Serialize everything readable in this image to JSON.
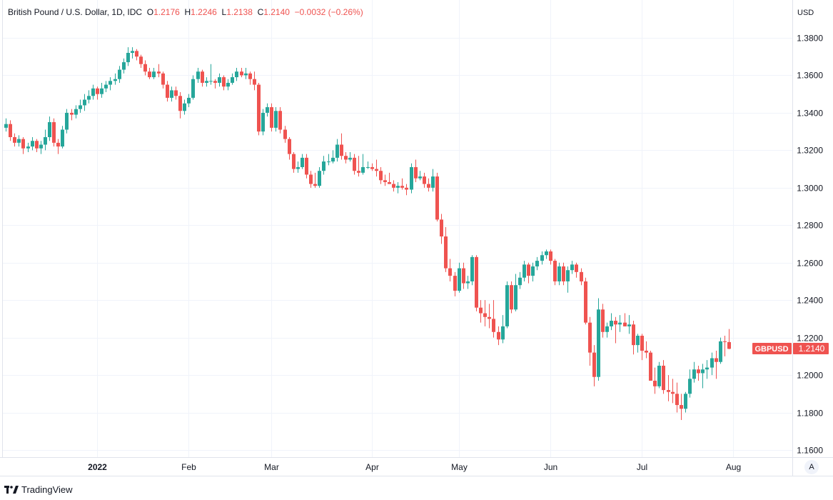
{
  "legend": {
    "title": "British Pound / U.S. Dollar, 1D, IDC",
    "o_label": "O",
    "o": "1.2176",
    "h_label": "H",
    "h": "1.2246",
    "l_label": "L",
    "l": "1.2138",
    "c_label": "C",
    "c": "1.2140",
    "change": "−0.0032 (−0.26%)"
  },
  "footer": {
    "brand": "TradingView"
  },
  "auto_button": "A",
  "colors": {
    "up": "#26a69a",
    "down": "#ef5350",
    "grid": "#f0f3fa",
    "text": "#131722"
  },
  "chart_data": {
    "type": "candlestick",
    "title": "British Pound / U.S. Dollar, 1D, IDC",
    "currency_label": "USD",
    "ylim": [
      1.16,
      1.38
    ],
    "yticks": [
      "1.1600",
      "1.1800",
      "1.2000",
      "1.2200",
      "1.2400",
      "1.2600",
      "1.2800",
      "1.3000",
      "1.3200",
      "1.3400",
      "1.3600",
      "1.3800"
    ],
    "xticks": [
      {
        "label": "2022",
        "index": 21
      },
      {
        "label": "Feb",
        "index": 42
      },
      {
        "label": "Mar",
        "index": 61
      },
      {
        "label": "Apr",
        "index": 84
      },
      {
        "label": "May",
        "index": 104
      },
      {
        "label": "Jun",
        "index": 125
      },
      {
        "label": "Jul",
        "index": 146
      },
      {
        "label": "Aug",
        "index": 167
      }
    ],
    "last_price": {
      "symbol": "GBPUSD",
      "value": "1.2140",
      "price": 1.214
    },
    "candles_ohlc": [
      [
        1.332,
        1.337,
        1.33,
        1.334
      ],
      [
        1.334,
        1.336,
        1.325,
        1.327
      ],
      [
        1.327,
        1.329,
        1.322,
        1.324
      ],
      [
        1.324,
        1.328,
        1.322,
        1.326
      ],
      [
        1.326,
        1.327,
        1.318,
        1.321
      ],
      [
        1.321,
        1.324,
        1.319,
        1.322
      ],
      [
        1.322,
        1.327,
        1.32,
        1.325
      ],
      [
        1.325,
        1.326,
        1.319,
        1.321
      ],
      [
        1.321,
        1.325,
        1.318,
        1.323
      ],
      [
        1.323,
        1.331,
        1.32,
        1.327
      ],
      [
        1.327,
        1.338,
        1.325,
        1.335
      ],
      [
        1.335,
        1.337,
        1.322,
        1.324
      ],
      [
        1.324,
        1.326,
        1.318,
        1.322
      ],
      [
        1.322,
        1.333,
        1.321,
        1.331
      ],
      [
        1.331,
        1.342,
        1.329,
        1.34
      ],
      [
        1.34,
        1.342,
        1.336,
        1.339
      ],
      [
        1.339,
        1.344,
        1.337,
        1.342
      ],
      [
        1.342,
        1.347,
        1.34,
        1.344
      ],
      [
        1.344,
        1.35,
        1.341,
        1.347
      ],
      [
        1.347,
        1.352,
        1.345,
        1.349
      ],
      [
        1.349,
        1.355,
        1.347,
        1.353
      ],
      [
        1.353,
        1.354,
        1.347,
        1.35
      ],
      [
        1.35,
        1.356,
        1.348,
        1.353
      ],
      [
        1.353,
        1.357,
        1.351,
        1.355
      ],
      [
        1.355,
        1.359,
        1.352,
        1.357
      ],
      [
        1.357,
        1.361,
        1.355,
        1.358
      ],
      [
        1.358,
        1.365,
        1.356,
        1.363
      ],
      [
        1.363,
        1.369,
        1.361,
        1.367
      ],
      [
        1.367,
        1.375,
        1.365,
        1.372
      ],
      [
        1.372,
        1.375,
        1.369,
        1.373
      ],
      [
        1.373,
        1.374,
        1.368,
        1.37
      ],
      [
        1.37,
        1.371,
        1.364,
        1.366
      ],
      [
        1.366,
        1.368,
        1.36,
        1.362
      ],
      [
        1.362,
        1.364,
        1.358,
        1.359
      ],
      [
        1.359,
        1.364,
        1.358,
        1.362
      ],
      [
        1.362,
        1.366,
        1.359,
        1.361
      ],
      [
        1.361,
        1.362,
        1.353,
        1.355
      ],
      [
        1.355,
        1.357,
        1.346,
        1.348
      ],
      [
        1.348,
        1.354,
        1.346,
        1.352
      ],
      [
        1.352,
        1.354,
        1.347,
        1.349
      ],
      [
        1.349,
        1.351,
        1.337,
        1.341
      ],
      [
        1.341,
        1.347,
        1.339,
        1.345
      ],
      [
        1.345,
        1.35,
        1.343,
        1.348
      ],
      [
        1.348,
        1.36,
        1.347,
        1.358
      ],
      [
        1.358,
        1.364,
        1.356,
        1.362
      ],
      [
        1.362,
        1.363,
        1.354,
        1.356
      ],
      [
        1.356,
        1.359,
        1.354,
        1.357
      ],
      [
        1.357,
        1.366,
        1.355,
        1.357
      ],
      [
        1.357,
        1.358,
        1.353,
        1.356
      ],
      [
        1.356,
        1.361,
        1.354,
        1.359
      ],
      [
        1.359,
        1.36,
        1.352,
        1.354
      ],
      [
        1.354,
        1.358,
        1.352,
        1.356
      ],
      [
        1.356,
        1.361,
        1.355,
        1.359
      ],
      [
        1.359,
        1.364,
        1.357,
        1.362
      ],
      [
        1.362,
        1.364,
        1.359,
        1.36
      ],
      [
        1.36,
        1.364,
        1.358,
        1.361
      ],
      [
        1.361,
        1.362,
        1.355,
        1.358
      ],
      [
        1.358,
        1.362,
        1.352,
        1.355
      ],
      [
        1.355,
        1.356,
        1.328,
        1.33
      ],
      [
        1.33,
        1.342,
        1.328,
        1.34
      ],
      [
        1.34,
        1.345,
        1.338,
        1.343
      ],
      [
        1.343,
        1.345,
        1.33,
        1.332
      ],
      [
        1.332,
        1.343,
        1.33,
        1.341
      ],
      [
        1.341,
        1.343,
        1.329,
        1.331
      ],
      [
        1.331,
        1.333,
        1.324,
        1.326
      ],
      [
        1.326,
        1.327,
        1.315,
        1.318
      ],
      [
        1.318,
        1.319,
        1.308,
        1.31
      ],
      [
        1.31,
        1.314,
        1.308,
        1.311
      ],
      [
        1.311,
        1.318,
        1.31,
        1.316
      ],
      [
        1.316,
        1.318,
        1.305,
        1.307
      ],
      [
        1.307,
        1.309,
        1.3,
        1.302
      ],
      [
        1.302,
        1.308,
        1.3,
        1.301
      ],
      [
        1.301,
        1.311,
        1.3,
        1.309
      ],
      [
        1.309,
        1.317,
        1.307,
        1.314
      ],
      [
        1.314,
        1.318,
        1.312,
        1.314
      ],
      [
        1.314,
        1.32,
        1.313,
        1.316
      ],
      [
        1.316,
        1.326,
        1.314,
        1.323
      ],
      [
        1.323,
        1.329,
        1.315,
        1.317
      ],
      [
        1.317,
        1.319,
        1.313,
        1.315
      ],
      [
        1.315,
        1.319,
        1.314,
        1.316
      ],
      [
        1.316,
        1.318,
        1.307,
        1.309
      ],
      [
        1.309,
        1.317,
        1.306,
        1.308
      ],
      [
        1.308,
        1.318,
        1.307,
        1.311
      ],
      [
        1.311,
        1.314,
        1.31,
        1.311
      ],
      [
        1.311,
        1.313,
        1.309,
        1.31
      ],
      [
        1.31,
        1.315,
        1.306,
        1.309
      ],
      [
        1.309,
        1.311,
        1.302,
        1.304
      ],
      [
        1.304,
        1.307,
        1.301,
        1.303
      ],
      [
        1.303,
        1.308,
        1.302,
        1.302
      ],
      [
        1.302,
        1.304,
        1.298,
        1.3
      ],
      [
        1.3,
        1.303,
        1.297,
        1.301
      ],
      [
        1.301,
        1.305,
        1.299,
        1.3
      ],
      [
        1.3,
        1.302,
        1.296,
        1.299
      ],
      [
        1.299,
        1.313,
        1.297,
        1.311
      ],
      [
        1.311,
        1.315,
        1.303,
        1.305
      ],
      [
        1.305,
        1.309,
        1.304,
        1.306
      ],
      [
        1.306,
        1.308,
        1.3,
        1.302
      ],
      [
        1.302,
        1.305,
        1.298,
        1.3
      ],
      [
        1.3,
        1.31,
        1.298,
        1.306
      ],
      [
        1.306,
        1.308,
        1.282,
        1.283
      ],
      [
        1.283,
        1.286,
        1.27,
        1.274
      ],
      [
        1.274,
        1.279,
        1.255,
        1.257
      ],
      [
        1.257,
        1.262,
        1.25,
        1.253
      ],
      [
        1.253,
        1.255,
        1.242,
        1.245
      ],
      [
        1.245,
        1.26,
        1.244,
        1.257
      ],
      [
        1.257,
        1.26,
        1.246,
        1.249
      ],
      [
        1.249,
        1.253,
        1.246,
        1.25
      ],
      [
        1.25,
        1.264,
        1.248,
        1.263
      ],
      [
        1.263,
        1.264,
        1.234,
        1.236
      ],
      [
        1.236,
        1.24,
        1.228,
        1.233
      ],
      [
        1.233,
        1.24,
        1.226,
        1.231
      ],
      [
        1.231,
        1.238,
        1.225,
        1.23
      ],
      [
        1.23,
        1.24,
        1.22,
        1.223
      ],
      [
        1.223,
        1.226,
        1.216,
        1.219
      ],
      [
        1.219,
        1.232,
        1.217,
        1.226
      ],
      [
        1.226,
        1.25,
        1.225,
        1.248
      ],
      [
        1.248,
        1.25,
        1.233,
        1.235
      ],
      [
        1.235,
        1.254,
        1.234,
        1.248
      ],
      [
        1.248,
        1.255,
        1.246,
        1.252
      ],
      [
        1.252,
        1.261,
        1.25,
        1.259
      ],
      [
        1.259,
        1.26,
        1.249,
        1.253
      ],
      [
        1.253,
        1.26,
        1.25,
        1.258
      ],
      [
        1.258,
        1.263,
        1.256,
        1.261
      ],
      [
        1.261,
        1.266,
        1.259,
        1.264
      ],
      [
        1.264,
        1.267,
        1.262,
        1.266
      ],
      [
        1.266,
        1.267,
        1.259,
        1.261
      ],
      [
        1.261,
        1.262,
        1.248,
        1.25
      ],
      [
        1.25,
        1.26,
        1.248,
        1.258
      ],
      [
        1.258,
        1.26,
        1.248,
        1.25
      ],
      [
        1.25,
        1.258,
        1.244,
        1.256
      ],
      [
        1.256,
        1.261,
        1.254,
        1.259
      ],
      [
        1.259,
        1.26,
        1.252,
        1.255
      ],
      [
        1.255,
        1.257,
        1.248,
        1.25
      ],
      [
        1.25,
        1.252,
        1.227,
        1.228
      ],
      [
        1.228,
        1.231,
        1.205,
        1.212
      ],
      [
        1.212,
        1.216,
        1.194,
        1.199
      ],
      [
        1.199,
        1.241,
        1.197,
        1.235
      ],
      [
        1.235,
        1.238,
        1.22,
        1.223
      ],
      [
        1.223,
        1.228,
        1.22,
        1.226
      ],
      [
        1.226,
        1.233,
        1.224,
        1.229
      ],
      [
        1.229,
        1.231,
        1.217,
        1.227
      ],
      [
        1.227,
        1.232,
        1.223,
        1.228
      ],
      [
        1.228,
        1.233,
        1.226,
        1.226
      ],
      [
        1.226,
        1.232,
        1.222,
        1.227
      ],
      [
        1.227,
        1.229,
        1.211,
        1.216
      ],
      [
        1.216,
        1.222,
        1.212,
        1.221
      ],
      [
        1.221,
        1.222,
        1.208,
        1.213
      ],
      [
        1.213,
        1.218,
        1.209,
        1.212
      ],
      [
        1.212,
        1.213,
        1.197,
        1.197
      ],
      [
        1.197,
        1.204,
        1.19,
        1.194
      ],
      [
        1.194,
        1.207,
        1.193,
        1.205
      ],
      [
        1.205,
        1.208,
        1.19,
        1.192
      ],
      [
        1.192,
        1.2,
        1.186,
        1.191
      ],
      [
        1.191,
        1.198,
        1.185,
        1.19
      ],
      [
        1.19,
        1.196,
        1.18,
        1.184
      ],
      [
        1.184,
        1.19,
        1.176,
        1.182
      ],
      [
        1.182,
        1.191,
        1.18,
        1.19
      ],
      [
        1.19,
        1.203,
        1.188,
        1.198
      ],
      [
        1.198,
        1.207,
        1.196,
        1.203
      ],
      [
        1.203,
        1.205,
        1.197,
        1.201
      ],
      [
        1.201,
        1.206,
        1.193,
        1.203
      ],
      [
        1.203,
        1.208,
        1.198,
        1.204
      ],
      [
        1.204,
        1.212,
        1.2,
        1.209
      ],
      [
        1.209,
        1.213,
        1.198,
        1.207
      ],
      [
        1.207,
        1.22,
        1.206,
        1.218
      ],
      [
        1.218,
        1.221,
        1.21,
        1.2176
      ],
      [
        1.2176,
        1.2246,
        1.2138,
        1.214
      ]
    ]
  }
}
